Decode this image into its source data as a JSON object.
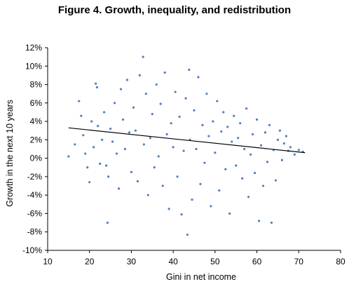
{
  "chart_data": {
    "type": "scatter",
    "title": "Figure 4. Growth, inequality, and redistribution",
    "xlabel": "Gini in net income",
    "ylabel": "Growth in the next 10 years",
    "xlim": [
      10,
      80
    ],
    "ylim": [
      -10,
      12
    ],
    "x_ticks": [
      "10",
      "20",
      "30",
      "40",
      "50",
      "60",
      "70",
      "80"
    ],
    "y_ticks": [
      "-10%",
      "-8%",
      "-6%",
      "-4%",
      "-2%",
      "0%",
      "2%",
      "4%",
      "6%",
      "8%",
      "10%",
      "12%"
    ],
    "grid": false,
    "legend": "none",
    "point_color": "#4f81bd",
    "trendline": {
      "x": [
        15,
        71.5
      ],
      "y": [
        3.3,
        0.6
      ],
      "color": "#000000"
    },
    "points": [
      [
        15.0,
        0.2
      ],
      [
        16.5,
        1.5
      ],
      [
        17.5,
        6.2
      ],
      [
        18.0,
        4.6
      ],
      [
        18.5,
        2.5
      ],
      [
        19.0,
        0.5
      ],
      [
        19.5,
        -1.0
      ],
      [
        20.0,
        -2.6
      ],
      [
        20.5,
        4.0
      ],
      [
        21.0,
        1.2
      ],
      [
        21.5,
        8.1
      ],
      [
        21.8,
        7.7
      ],
      [
        22.0,
        3.5
      ],
      [
        22.5,
        -0.6
      ],
      [
        23.0,
        2.0
      ],
      [
        23.5,
        5.0
      ],
      [
        24.0,
        -0.8
      ],
      [
        24.5,
        -2.0
      ],
      [
        24.3,
        -7.0
      ],
      [
        25.0,
        3.2
      ],
      [
        25.5,
        1.8
      ],
      [
        26.0,
        6.0
      ],
      [
        26.5,
        0.5
      ],
      [
        27.0,
        -3.3
      ],
      [
        27.5,
        7.5
      ],
      [
        28.0,
        4.2
      ],
      [
        28.5,
        1.0
      ],
      [
        29.0,
        8.5
      ],
      [
        29.5,
        2.8
      ],
      [
        30.0,
        -1.5
      ],
      [
        30.5,
        5.5
      ],
      [
        31.0,
        3.0
      ],
      [
        31.5,
        -2.5
      ],
      [
        32.0,
        9.0
      ],
      [
        32.8,
        11.0
      ],
      [
        33.0,
        1.5
      ],
      [
        33.5,
        7.0
      ],
      [
        34.0,
        -4.0
      ],
      [
        34.5,
        2.2
      ],
      [
        35.0,
        4.8
      ],
      [
        35.5,
        -1.0
      ],
      [
        36.0,
        8.0
      ],
      [
        36.5,
        0.2
      ],
      [
        37.0,
        5.9
      ],
      [
        37.5,
        -3.0
      ],
      [
        38.0,
        9.3
      ],
      [
        38.5,
        2.6
      ],
      [
        39.0,
        -5.5
      ],
      [
        39.5,
        3.8
      ],
      [
        40.0,
        1.2
      ],
      [
        40.5,
        7.2
      ],
      [
        41.0,
        -2.0
      ],
      [
        41.5,
        4.5
      ],
      [
        42.0,
        -6.1
      ],
      [
        42.5,
        0.8
      ],
      [
        43.0,
        6.5
      ],
      [
        43.4,
        -8.3
      ],
      [
        43.8,
        9.6
      ],
      [
        44.0,
        2.0
      ],
      [
        44.5,
        -4.5
      ],
      [
        45.0,
        5.2
      ],
      [
        45.5,
        1.0
      ],
      [
        46.0,
        8.8
      ],
      [
        46.5,
        -2.8
      ],
      [
        47.0,
        3.6
      ],
      [
        47.5,
        -0.5
      ],
      [
        48.0,
        7.0
      ],
      [
        48.5,
        2.4
      ],
      [
        49.0,
        -5.2
      ],
      [
        49.5,
        4.0
      ],
      [
        50.0,
        0.6
      ],
      [
        50.5,
        6.2
      ],
      [
        51.0,
        -3.5
      ],
      [
        51.5,
        2.9
      ],
      [
        52.0,
        5.0
      ],
      [
        52.5,
        -1.2
      ],
      [
        53.0,
        3.4
      ],
      [
        53.5,
        -6.0
      ],
      [
        54.0,
        1.8
      ],
      [
        54.5,
        4.6
      ],
      [
        55.0,
        -0.8
      ],
      [
        55.5,
        2.2
      ],
      [
        56.0,
        3.8
      ],
      [
        56.5,
        -2.2
      ],
      [
        57.0,
        1.0
      ],
      [
        57.5,
        5.4
      ],
      [
        58.0,
        -4.2
      ],
      [
        58.5,
        0.4
      ],
      [
        59.0,
        2.6
      ],
      [
        59.5,
        -1.6
      ],
      [
        60.0,
        4.2
      ],
      [
        60.5,
        -6.8
      ],
      [
        61.0,
        1.4
      ],
      [
        61.5,
        -3.0
      ],
      [
        62.0,
        2.8
      ],
      [
        62.5,
        -0.4
      ],
      [
        63.0,
        3.6
      ],
      [
        63.5,
        -7.0
      ],
      [
        64.0,
        0.9
      ],
      [
        64.5,
        -2.4
      ],
      [
        65.0,
        2.0
      ],
      [
        65.5,
        3.0
      ],
      [
        66.0,
        -0.2
      ],
      [
        66.5,
        1.6
      ],
      [
        67.0,
        2.4
      ],
      [
        67.5,
        0.8
      ],
      [
        68.0,
        1.2
      ],
      [
        69.0,
        0.4
      ],
      [
        70.0,
        0.9
      ],
      [
        71.0,
        0.7
      ]
    ]
  }
}
